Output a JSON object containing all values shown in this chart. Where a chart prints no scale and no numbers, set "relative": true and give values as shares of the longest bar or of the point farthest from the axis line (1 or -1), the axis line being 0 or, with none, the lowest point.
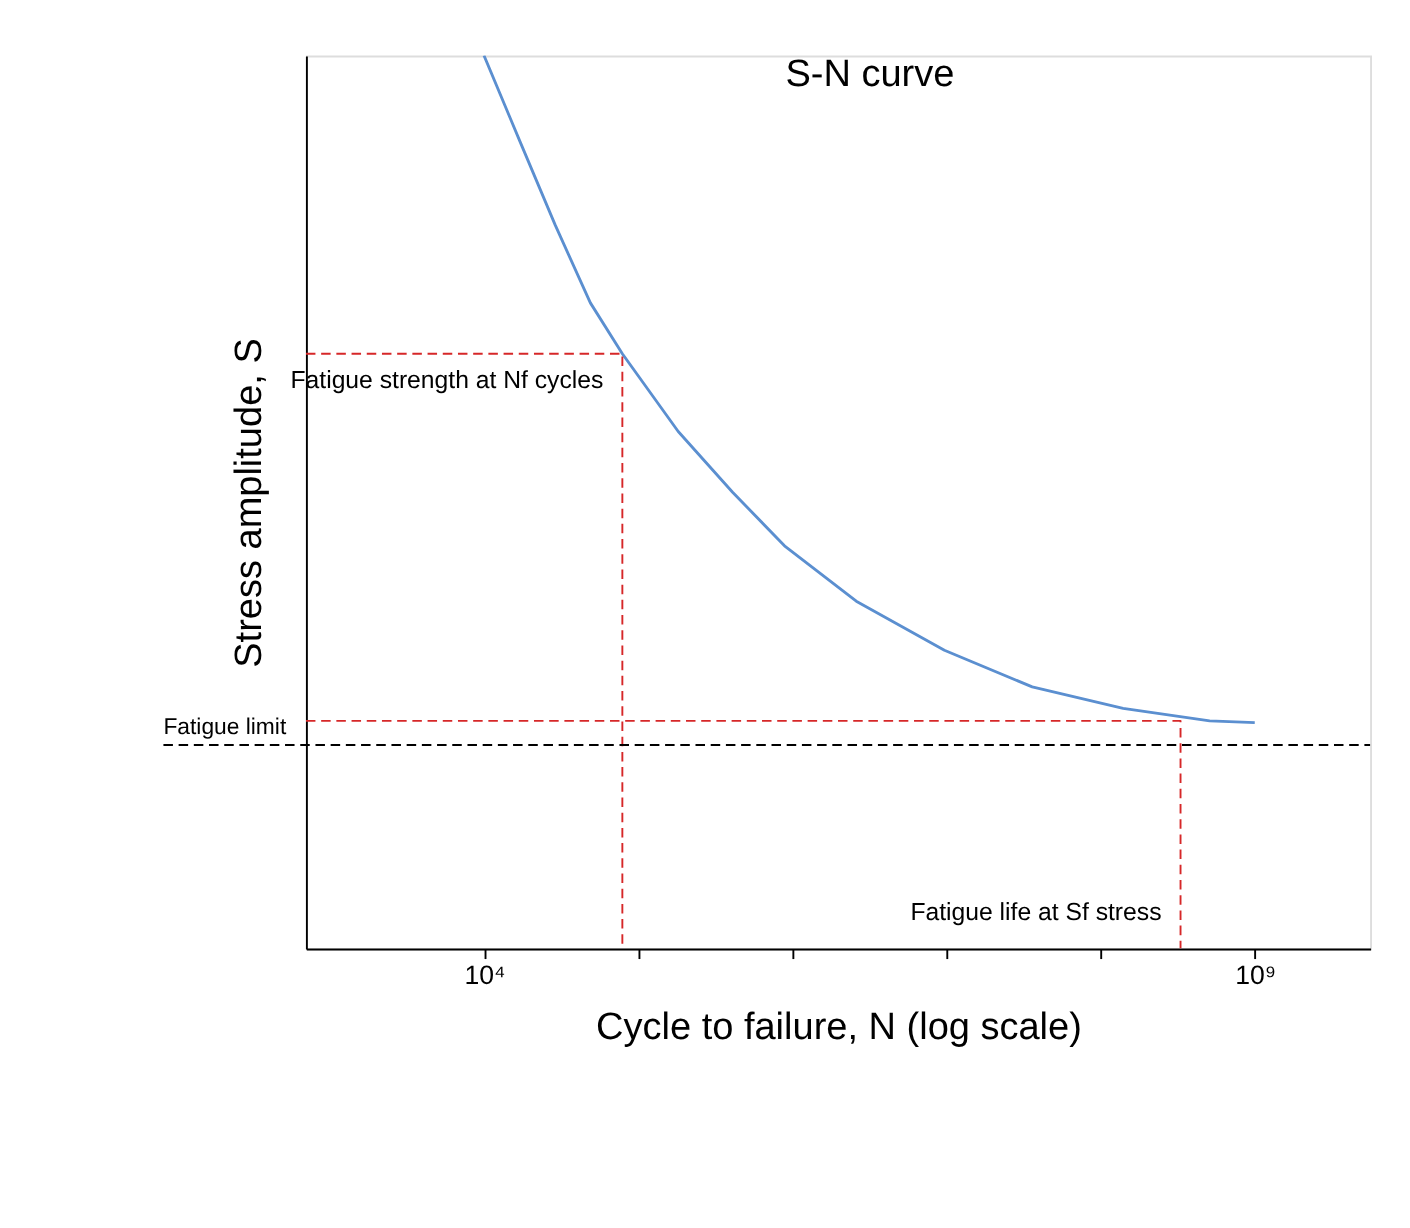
{
  "chart_data": {
    "type": "line",
    "title": "S-N curve",
    "xlabel": "Cycle to failure, N   (log scale)",
    "ylabel": "Stress amplitude, S",
    "relative": true,
    "log": "x",
    "xlim": [
      700,
      5600000000
    ],
    "xticks": [
      {
        "value": 10000,
        "label": "10⁴"
      },
      {
        "value": 100000,
        "label": null
      },
      {
        "value": 1000000,
        "label": null
      },
      {
        "value": 10000000,
        "label": null
      },
      {
        "value": 100000000,
        "label": null
      },
      {
        "value": 1000000000,
        "label": "10⁹"
      }
    ],
    "grid": false,
    "marker": "none",
    "series": [
      {
        "color": "#5b8fd0",
        "line_style": "solid",
        "x": [
          10000,
          17000,
          29000,
          49000,
          79000,
          182000,
          410000,
          890000,
          2600000,
          9700000,
          36000000,
          140000000,
          510000000,
          1000000000
        ],
        "values": [
          1,
          0.905,
          0.81,
          0.723,
          0.666,
          0.579,
          0.511,
          0.451,
          0.389,
          0.334,
          0.293,
          0.269,
          0.255,
          0.253
        ]
      },
      {
        "color": "#d62728",
        "line_style": "dashed",
        "x": [
          700,
          79000,
          79000
        ],
        "values": [
          0.666,
          0.666,
          0
        ]
      },
      {
        "color": "#d62728",
        "line_style": "dashed",
        "x": [
          700,
          330000000,
          330000000
        ],
        "values": [
          0.255,
          0.255,
          0
        ]
      }
    ],
    "ref_lines": [
      {
        "axis": "y",
        "value": 0.228,
        "label": "Fatigue limit",
        "color": "#000000",
        "line_style": "dashed"
      }
    ],
    "annotations": [
      {
        "text": "Fatigue strength at Nf cycles",
        "x": 79000,
        "y": 0.666
      },
      {
        "text": "Fatigue life at Sf stress",
        "x": 330000000,
        "y": 0
      }
    ]
  }
}
